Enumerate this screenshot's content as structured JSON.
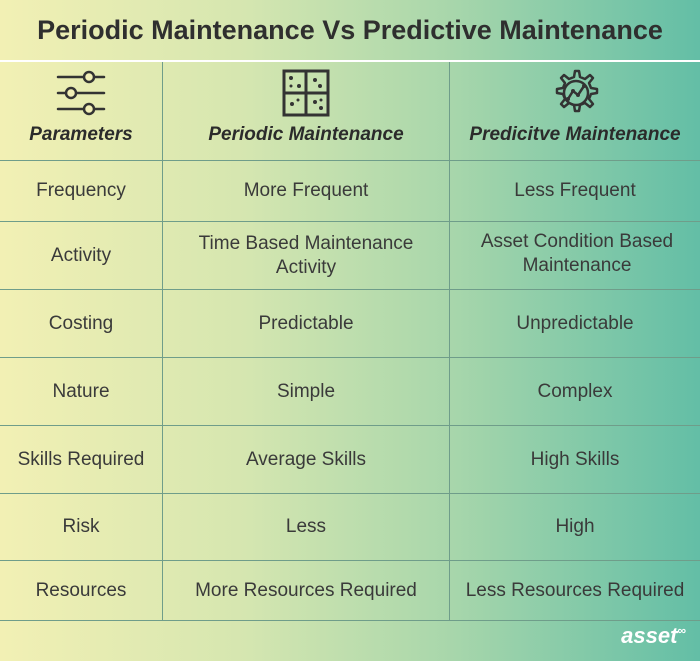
{
  "title": "Periodic Maintenance Vs Predictive Maintenance",
  "columns": [
    {
      "label": "Parameters",
      "icon": "sliders-icon"
    },
    {
      "label": "Periodic Maintenance",
      "icon": "grid-calendar-icon"
    },
    {
      "label": "Predicitve Maintenance",
      "icon": "gear-analytics-icon"
    }
  ],
  "rows": [
    {
      "parameter": "Frequency",
      "periodic": "More Frequent",
      "predictive": "Less Frequent"
    },
    {
      "parameter": "Activity",
      "periodic": "Time Based Maintenance Activity",
      "predictive": "Asset Condition Based Maintenance"
    },
    {
      "parameter": "Costing",
      "periodic": "Predictable",
      "predictive": "Unpredictable"
    },
    {
      "parameter": "Nature",
      "periodic": "Simple",
      "predictive": "Complex"
    },
    {
      "parameter": "Skills Required",
      "periodic": "Average Skills",
      "predictive": "High Skills"
    },
    {
      "parameter": "Risk",
      "periodic": "Less",
      "predictive": "High"
    },
    {
      "parameter": "Resources",
      "periodic": "More Resources Required",
      "predictive": "Less Resources Required"
    }
  ],
  "logo": {
    "text": "asset",
    "mark": "∞"
  },
  "colors": {
    "gradient_start": "#f2f0b4",
    "gradient_end": "#63bea6",
    "grid_line": "#6f9d8a"
  }
}
